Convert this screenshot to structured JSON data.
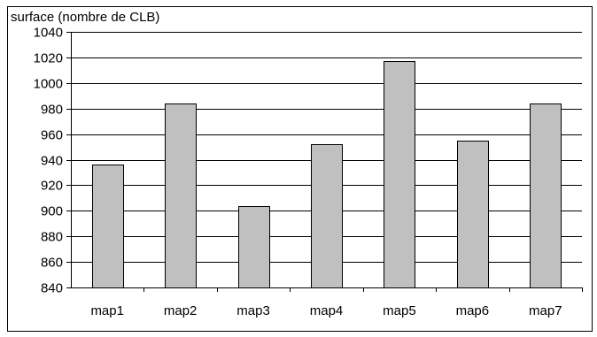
{
  "chart_data": {
    "type": "bar",
    "ylabel": "surface (nombre de CLB)",
    "categories": [
      "map1",
      "map2",
      "map3",
      "map4",
      "map5",
      "map6",
      "map7"
    ],
    "values": [
      936,
      984,
      904,
      952,
      1017,
      955,
      984
    ],
    "ylim": [
      840,
      1040
    ],
    "yticks": [
      840,
      860,
      880,
      900,
      920,
      940,
      960,
      980,
      1000,
      1020,
      1040
    ],
    "grid": true,
    "legend": "none",
    "colors": {
      "bar_fill": "#c0c0c0",
      "bar_stroke": "#000000",
      "grid": "#000000",
      "frame": "#000000"
    }
  }
}
